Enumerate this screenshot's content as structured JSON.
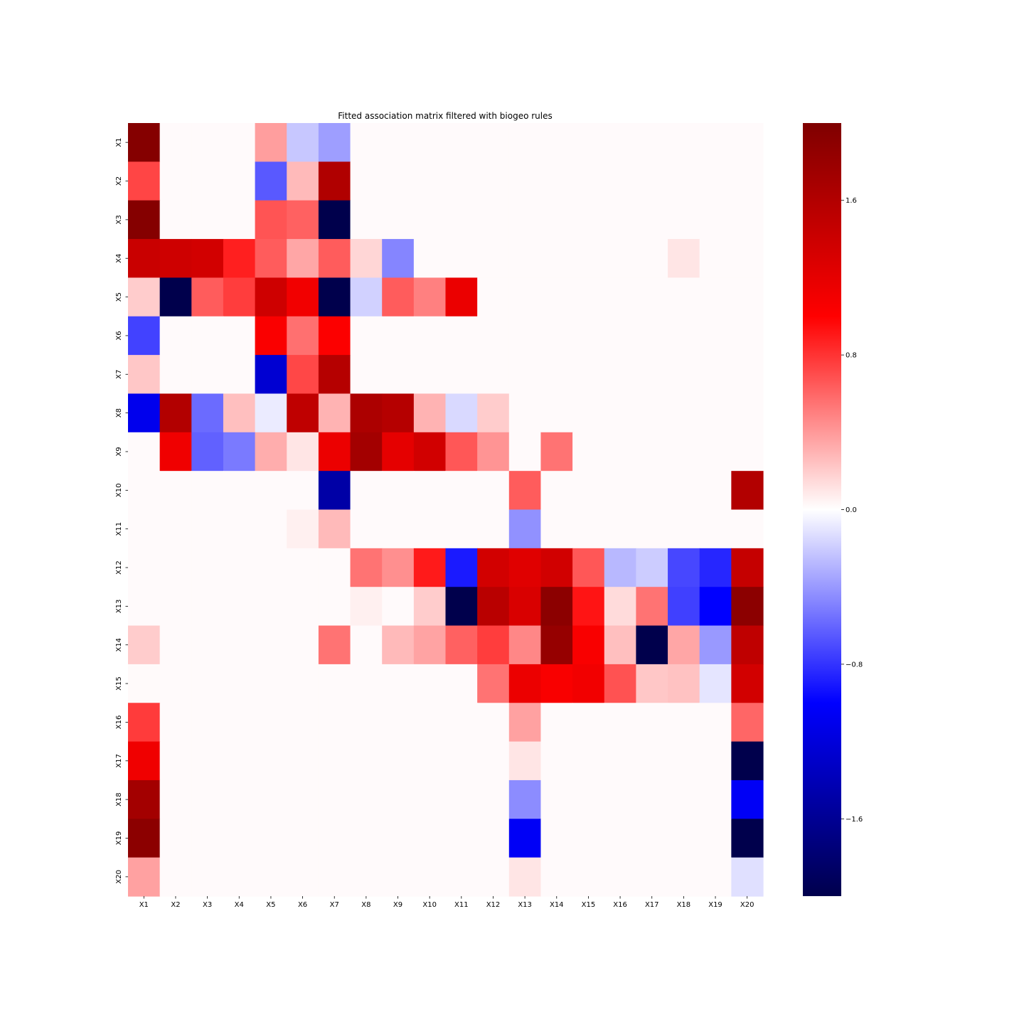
{
  "chart_data": {
    "type": "heatmap",
    "title": "Fitted association matrix filtered with biogeo rules",
    "xlabel": "",
    "ylabel": "",
    "x_categories": [
      "X1",
      "X2",
      "X3",
      "X4",
      "X5",
      "X6",
      "X7",
      "X8",
      "X9",
      "X10",
      "X11",
      "X12",
      "X13",
      "X14",
      "X15",
      "X16",
      "X17",
      "X18",
      "X19",
      "X20"
    ],
    "y_categories": [
      "X1",
      "X2",
      "X3",
      "X4",
      "X5",
      "X6",
      "X7",
      "X8",
      "X9",
      "X10",
      "X11",
      "X12",
      "X13",
      "X14",
      "X15",
      "X16",
      "X17",
      "X18",
      "X19",
      "X20"
    ],
    "colormap": "seismic",
    "colormap_colors": [
      "#00004c",
      "#0000ff",
      "#ffffff",
      "#ff0000",
      "#7f0000"
    ],
    "vmin": -2,
    "vmax": 2,
    "colorbar_ticks": [
      1.6,
      0.8,
      0.0,
      -0.8,
      -1.6
    ],
    "colorbar_tick_labels": [
      "1.6",
      "0.8",
      "0.0",
      "−0.8",
      "−1.6"
    ],
    "empty_value": 0.0,
    "empty_color": "#fffafb",
    "values": [
      [
        1.95,
        0.0,
        0.0,
        0.0,
        0.38,
        -0.22,
        -0.38,
        0.0,
        0.0,
        0.0,
        0.0,
        0.0,
        0.0,
        0.0,
        0.0,
        0.0,
        0.0,
        0.0,
        0.0,
        0.0
      ],
      [
        0.73,
        0.0,
        0.0,
        0.0,
        -0.65,
        0.27,
        1.62,
        0.0,
        0.0,
        0.0,
        0.0,
        0.0,
        0.0,
        0.0,
        0.0,
        0.0,
        0.0,
        0.0,
        0.0,
        0.0
      ],
      [
        1.95,
        0.0,
        0.0,
        0.0,
        0.67,
        0.62,
        -2.0,
        0.0,
        0.0,
        0.0,
        0.0,
        0.0,
        0.0,
        0.0,
        0.0,
        0.0,
        0.0,
        0.0,
        0.0,
        0.0
      ],
      [
        1.42,
        1.38,
        1.35,
        0.88,
        0.64,
        0.35,
        0.64,
        0.16,
        -0.48,
        0.0,
        0.0,
        0.0,
        0.0,
        0.0,
        0.0,
        0.0,
        0.0,
        0.1,
        0.0,
        0.0
      ],
      [
        0.2,
        -2.0,
        0.64,
        0.76,
        1.38,
        1.1,
        -2.0,
        -0.18,
        0.64,
        0.5,
        1.16,
        0.0,
        0.0,
        0.0,
        0.0,
        0.0,
        0.0,
        0.0,
        0.0,
        0.0
      ],
      [
        -0.74,
        0.0,
        0.0,
        0.0,
        1.04,
        0.56,
        1.02,
        0.0,
        0.0,
        0.0,
        0.0,
        0.0,
        0.0,
        0.0,
        0.0,
        0.0,
        0.0,
        0.0,
        0.0,
        0.0
      ],
      [
        0.22,
        0.0,
        0.0,
        0.0,
        -1.25,
        0.72,
        1.58,
        0.0,
        0.0,
        0.0,
        0.0,
        0.0,
        0.0,
        0.0,
        0.0,
        0.0,
        0.0,
        0.0,
        0.0,
        0.0
      ],
      [
        -1.1,
        1.6,
        -0.58,
        0.25,
        -0.08,
        1.5,
        0.3,
        1.65,
        1.58,
        0.3,
        -0.15,
        0.2,
        0.0,
        0.0,
        0.0,
        0.0,
        0.0,
        0.0,
        0.0,
        0.0
      ],
      [
        0.0,
        1.12,
        -0.62,
        -0.52,
        0.32,
        0.1,
        1.15,
        1.72,
        1.2,
        1.36,
        0.66,
        0.42,
        0.0,
        0.55,
        0.0,
        0.0,
        0.0,
        0.0,
        0.0,
        0.0
      ],
      [
        0.0,
        0.0,
        0.0,
        0.0,
        0.0,
        0.0,
        -1.5,
        0.0,
        0.0,
        0.0,
        0.0,
        0.0,
        0.64,
        0.0,
        0.0,
        0.0,
        0.0,
        0.0,
        0.0,
        1.6
      ],
      [
        0.0,
        0.0,
        0.0,
        0.0,
        0.0,
        0.06,
        0.27,
        0.0,
        0.0,
        0.0,
        0.0,
        0.0,
        -0.43,
        0.0,
        0.0,
        0.0,
        0.0,
        0.0,
        0.0,
        0.0
      ],
      [
        0.0,
        0.0,
        0.0,
        0.0,
        0.0,
        0.0,
        0.0,
        0.55,
        0.44,
        0.9,
        -0.9,
        1.35,
        1.24,
        1.36,
        0.66,
        -0.28,
        -0.2,
        -0.72,
        -0.85,
        1.45
      ],
      [
        0.0,
        0.0,
        0.0,
        0.0,
        0.0,
        0.0,
        0.0,
        0.06,
        0.0,
        0.2,
        -2.0,
        1.55,
        1.3,
        1.9,
        0.92,
        0.14,
        0.55,
        -0.75,
        -1.0,
        1.9
      ],
      [
        0.2,
        0.0,
        0.0,
        0.0,
        0.0,
        0.0,
        0.55,
        0.0,
        0.27,
        0.36,
        0.62,
        0.76,
        0.47,
        1.82,
        1.05,
        0.25,
        -2.0,
        0.35,
        -0.4,
        1.5
      ],
      [
        0.02,
        0.0,
        0.0,
        0.0,
        0.0,
        0.0,
        0.0,
        0.0,
        0.0,
        0.0,
        0.0,
        0.55,
        1.15,
        1.05,
        1.1,
        0.68,
        0.22,
        0.24,
        -0.1,
        1.35
      ],
      [
        0.77,
        0.0,
        0.0,
        0.0,
        0.0,
        0.0,
        0.0,
        0.0,
        0.0,
        0.0,
        0.0,
        0.0,
        0.37,
        0.0,
        0.0,
        0.0,
        0.0,
        0.0,
        0.0,
        0.6
      ],
      [
        1.12,
        0.0,
        0.0,
        0.0,
        0.0,
        0.0,
        0.0,
        0.0,
        0.0,
        0.0,
        0.0,
        0.0,
        0.1,
        0.0,
        0.0,
        0.0,
        0.0,
        0.0,
        0.0,
        -2.0
      ],
      [
        1.72,
        0.0,
        0.0,
        0.0,
        0.0,
        0.0,
        0.0,
        0.0,
        0.0,
        0.0,
        0.0,
        0.0,
        -0.45,
        0.0,
        0.0,
        0.0,
        0.0,
        0.0,
        0.0,
        -1.05
      ],
      [
        1.9,
        0.0,
        0.0,
        0.0,
        0.0,
        0.0,
        0.0,
        0.0,
        0.0,
        0.0,
        0.0,
        0.0,
        -1.05,
        0.0,
        0.0,
        0.0,
        0.0,
        0.0,
        0.0,
        -2.0
      ],
      [
        0.37,
        0.0,
        0.0,
        0.0,
        0.0,
        0.0,
        0.0,
        0.0,
        0.0,
        0.0,
        0.0,
        0.0,
        0.1,
        0.0,
        0.0,
        0.0,
        0.0,
        0.0,
        0.0,
        -0.12
      ]
    ],
    "grid": false,
    "legend": "colorbar-right"
  }
}
